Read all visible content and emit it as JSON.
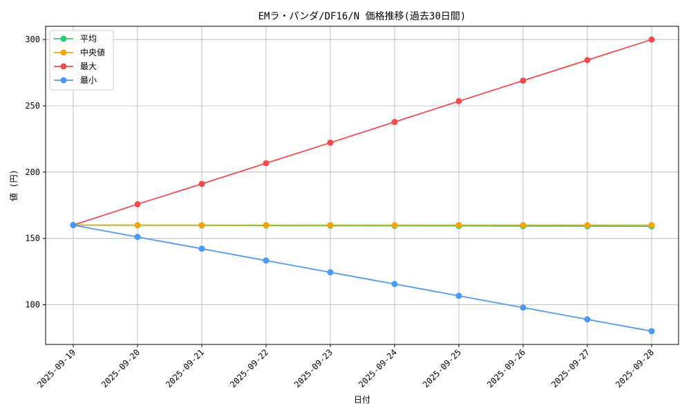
{
  "chart_data": {
    "type": "line",
    "title": "EMラ・パンダ/DF16/N 価格推移(過去30日間)",
    "xlabel": "日付",
    "ylabel": "値 (円)",
    "categories": [
      "2025-09-19",
      "2025-09-20",
      "2025-09-21",
      "2025-09-22",
      "2025-09-23",
      "2025-09-24",
      "2025-09-25",
      "2025-09-26",
      "2025-09-27",
      "2025-09-28"
    ],
    "ylim": [
      70,
      310
    ],
    "yticks": [
      100,
      150,
      200,
      250,
      300
    ],
    "grid": true,
    "legend_position": "top-left",
    "series": [
      {
        "name": "平均",
        "color": "#2ecc71",
        "values": [
          160,
          159.9,
          159.8,
          159.7,
          159.6,
          159.5,
          159.4,
          159.3,
          159.2,
          159.1
        ]
      },
      {
        "name": "中央値",
        "color": "#f5a50a",
        "values": [
          160,
          160,
          160,
          160,
          160,
          160,
          160,
          160,
          160,
          160
        ]
      },
      {
        "name": "最大",
        "color": "#f24b4b",
        "values": [
          160,
          175.8,
          191.1,
          206.7,
          222.2,
          237.8,
          253.5,
          269.0,
          284.5,
          300
        ]
      },
      {
        "name": "最小",
        "color": "#4a9af5",
        "values": [
          160,
          151.1,
          142.2,
          133.3,
          124.4,
          115.6,
          106.7,
          97.8,
          88.9,
          80
        ]
      }
    ]
  }
}
